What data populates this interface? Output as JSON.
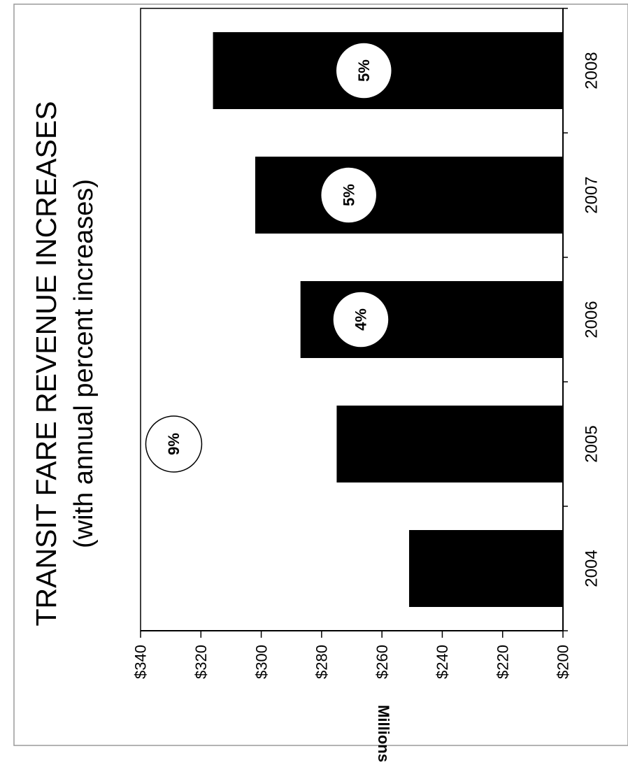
{
  "chart_data": {
    "type": "bar",
    "title": "TRANSIT FARE REVENUE INCREASES",
    "subtitle": "(with annual percent increases)",
    "ylabel": "Millions",
    "categories": [
      "2004",
      "2005",
      "2006",
      "2007",
      "2008"
    ],
    "values": [
      251,
      275,
      287,
      302,
      316
    ],
    "ylim": [
      200,
      340
    ],
    "yticks": [
      200,
      220,
      240,
      260,
      280,
      300,
      320,
      340
    ],
    "ytick_labels": [
      "$200",
      "$220",
      "$240",
      "$260",
      "$280",
      "$300",
      "$320",
      "$340"
    ],
    "annotations": [
      {
        "category": "2005",
        "label": "9%",
        "value": 329
      },
      {
        "category": "2006",
        "label": "4%",
        "value": 267
      },
      {
        "category": "2007",
        "label": "5%",
        "value": 271
      },
      {
        "category": "2008",
        "label": "5%",
        "value": 266
      }
    ],
    "bar_color": "#000000",
    "grid": false,
    "orientation": "rotated 90 degrees counter-clockwise"
  }
}
